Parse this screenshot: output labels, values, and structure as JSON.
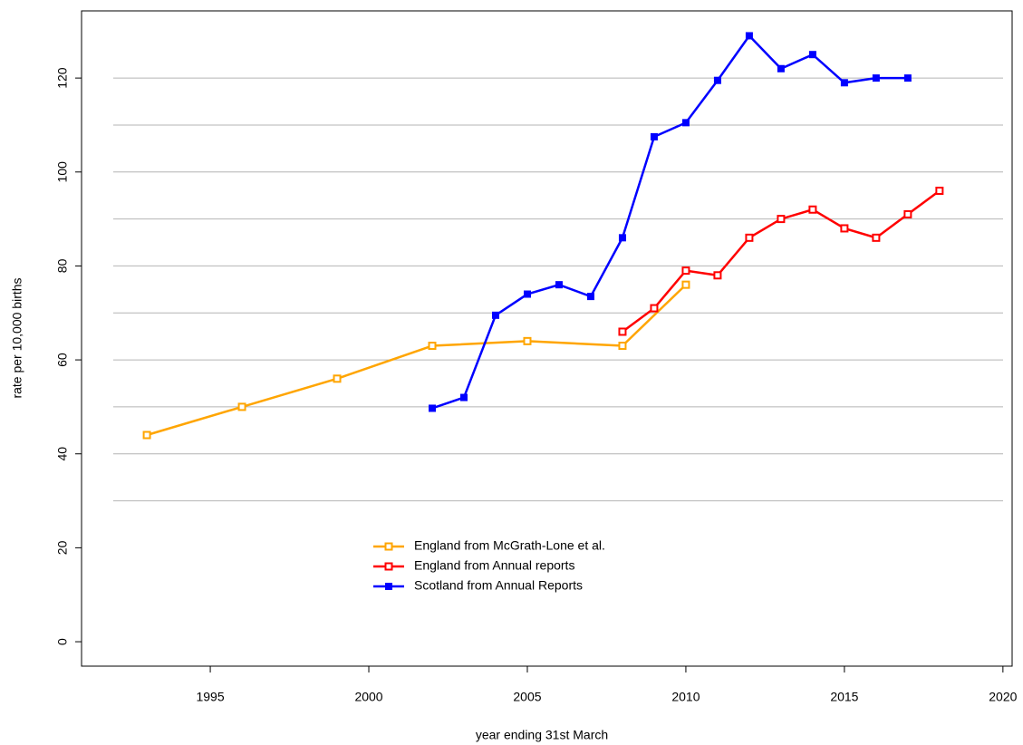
{
  "chart_data": {
    "type": "line",
    "xlabel": "year ending 31st March",
    "ylabel": "rate per 10,000 births",
    "xlim": [
      1990.94,
      2020.29
    ],
    "xticks": [
      1995,
      2000,
      2005,
      2010,
      2015,
      2020
    ],
    "ylim": [
      -5.2,
      134.3
    ],
    "yticks": [
      0,
      20,
      40,
      60,
      80,
      100,
      120
    ],
    "grid_lines": [
      30,
      40,
      50,
      60,
      70,
      80,
      90,
      100,
      110,
      120
    ],
    "legend": "bottom",
    "series": [
      {
        "name": "England from McGrath-Lone et al.",
        "color": "#ffa500",
        "marker": "open",
        "x": [
          1993,
          1996,
          1999,
          2002,
          2005,
          2008,
          2010
        ],
        "values": [
          44,
          50,
          56,
          63,
          64,
          63,
          76
        ]
      },
      {
        "name": "England from Annual reports",
        "color": "#ff0000",
        "marker": "open",
        "x": [
          2008,
          2009,
          2010,
          2011,
          2012,
          2013,
          2014,
          2015,
          2016,
          2017,
          2018
        ],
        "values": [
          66,
          71,
          79,
          78,
          86,
          90,
          92,
          88,
          86,
          91,
          96
        ]
      },
      {
        "name": "Scotland from Annual Reports",
        "color": "#0000ff",
        "marker": "filled",
        "x": [
          2002,
          2003,
          2004,
          2005,
          2006,
          2007,
          2008,
          2009,
          2010,
          2011,
          2012,
          2013,
          2014,
          2015,
          2016,
          2017
        ],
        "values": [
          49.7,
          52,
          69.5,
          74,
          76,
          73.5,
          86,
          107.5,
          110.5,
          119.5,
          129,
          122,
          125,
          119,
          120,
          120
        ]
      }
    ]
  }
}
